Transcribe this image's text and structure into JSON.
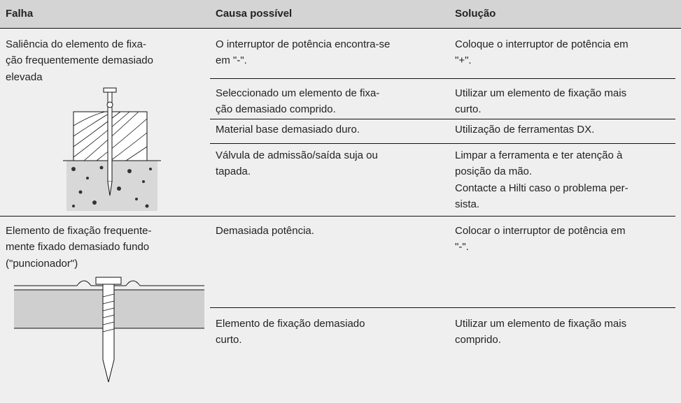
{
  "table": {
    "header": [
      "Falha",
      "Causa possível",
      "Solução"
    ],
    "rows": [
      {
        "problem": [
          "Saliência do elemento de fixa-",
          "ção frequentemente demasiado",
          "elevada"
        ],
        "causes": [
          {
            "cause": [
              "O interruptor de potência encontra-se",
              "em \"-\"."
            ],
            "solution": [
              "Coloque o interruptor de potência em",
              "\"+\"."
            ]
          },
          {
            "cause": [
              "Seleccionado um elemento de fixa-",
              "ção demasiado comprido."
            ],
            "solution": [
              "Utilizar um elemento de fixação mais",
              "curto."
            ]
          },
          {
            "cause": [
              "Material base demasiado duro."
            ],
            "solution": [
              "Utilização de ferramentas DX."
            ]
          },
          {
            "cause": [
              "Válvula de admissão/saída suja ou",
              "tapada."
            ],
            "solution": [
              "Limpar a ferramenta e ter atenção à",
              "posição da mão.",
              "Contacte a Hilti caso o problema per-",
              "sista."
            ]
          }
        ]
      },
      {
        "problem": [
          "Elemento de fixação frequente-",
          "mente fixado demasiado fundo",
          "(\"puncionador\")"
        ],
        "causes": [
          {
            "cause": [
              "Demasiada potência."
            ],
            "solution": [
              "Colocar o interruptor de potência em",
              "\"-\"."
            ]
          },
          {
            "cause": [
              "Elemento de fixação demasiado",
              "curto."
            ],
            "solution": [
              "Utilizar um elemento de fixação mais",
              "comprido."
            ]
          }
        ]
      }
    ]
  }
}
